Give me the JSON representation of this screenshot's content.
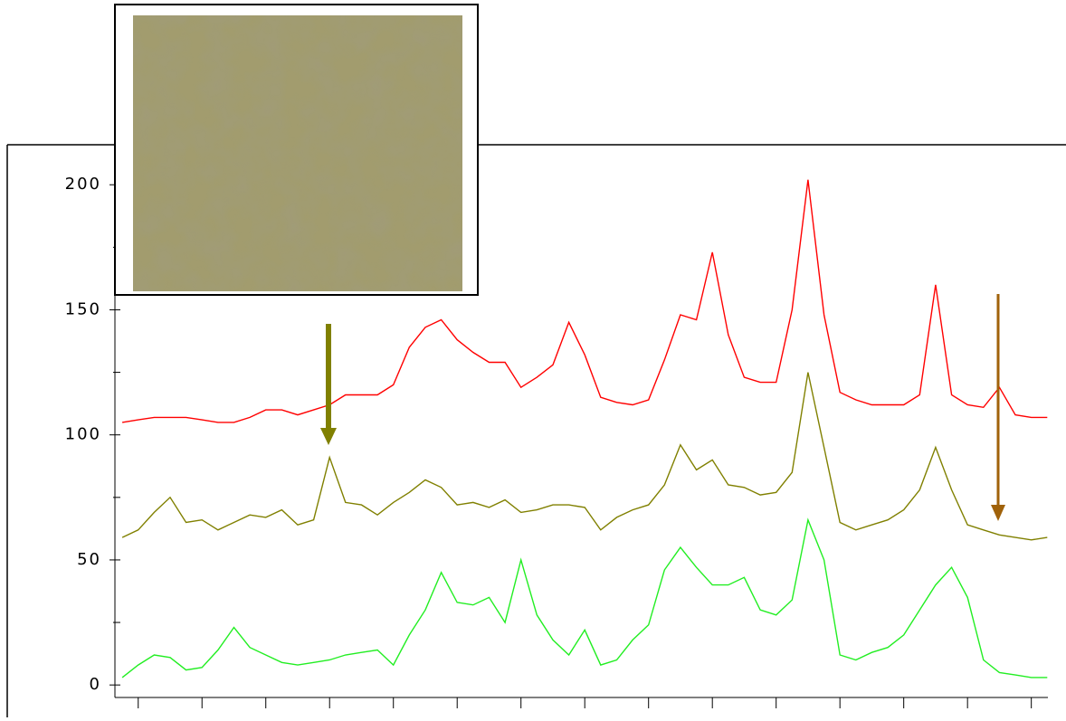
{
  "chart_data": {
    "type": "line",
    "x": [
      -0.25,
      0,
      0.25,
      0.5,
      0.75,
      1,
      1.25,
      1.5,
      1.75,
      2,
      2.25,
      2.5,
      2.75,
      3,
      3.25,
      3.5,
      3.75,
      4,
      4.25,
      4.5,
      4.75,
      5,
      5.25,
      5.5,
      5.75,
      6,
      6.25,
      6.5,
      6.75,
      7,
      7.25,
      7.5,
      7.75,
      8,
      8.25,
      8.5,
      8.75,
      9,
      9.25,
      9.5,
      9.75,
      10,
      10.25,
      10.5,
      10.75,
      11,
      11.25,
      11.5,
      11.75,
      12,
      12.25,
      12.5,
      12.75,
      13,
      13.25,
      13.5,
      13.75,
      14,
      14.25
    ],
    "series": [
      {
        "color": "#ff0000",
        "values": [
          105,
          106,
          107,
          107,
          107,
          106,
          105,
          105,
          107,
          110,
          110,
          108,
          110,
          112,
          116,
          116,
          116,
          120,
          135,
          143,
          146,
          138,
          133,
          129,
          129,
          119,
          123,
          128,
          145,
          132,
          115,
          113,
          112,
          114,
          130,
          148,
          146,
          173,
          140,
          123,
          121,
          121,
          150,
          202,
          148,
          117,
          114,
          112,
          112,
          112,
          116,
          160,
          116,
          112,
          111,
          119,
          108,
          107,
          107
        ]
      },
      {
        "color": "#808000",
        "values": [
          59,
          62,
          69,
          75,
          65,
          66,
          62,
          65,
          68,
          67,
          70,
          64,
          66,
          91,
          73,
          72,
          68,
          73,
          77,
          82,
          79,
          72,
          73,
          71,
          74,
          69,
          70,
          72,
          72,
          71,
          62,
          67,
          70,
          72,
          80,
          96,
          86,
          90,
          80,
          79,
          76,
          77,
          85,
          125,
          95,
          65,
          62,
          64,
          66,
          70,
          78,
          95,
          78,
          64,
          62,
          60,
          59,
          58,
          59
        ]
      },
      {
        "color": "#22ee22",
        "values": [
          3,
          8,
          12,
          11,
          6,
          7,
          14,
          23,
          15,
          12,
          9,
          8,
          9,
          10,
          12,
          13,
          14,
          8,
          20,
          30,
          45,
          33,
          32,
          35,
          25,
          50,
          28,
          18,
          12,
          22,
          8,
          10,
          18,
          24,
          46,
          55,
          47,
          40,
          40,
          43,
          30,
          28,
          34,
          66,
          50,
          12,
          10,
          13,
          15,
          20,
          30,
          40,
          47,
          35,
          10,
          5,
          4,
          3,
          3
        ]
      }
    ],
    "xlim": [
      -0.28,
      14.26
    ],
    "xticks": [
      0,
      1,
      2,
      3,
      4,
      5,
      6,
      7,
      8,
      9,
      10,
      11,
      12,
      13,
      14
    ],
    "ylim": [
      -5,
      216
    ],
    "yticks": [
      0,
      50,
      100,
      150,
      200
    ],
    "yminorticks": [
      25,
      75,
      125,
      175
    ]
  }
}
